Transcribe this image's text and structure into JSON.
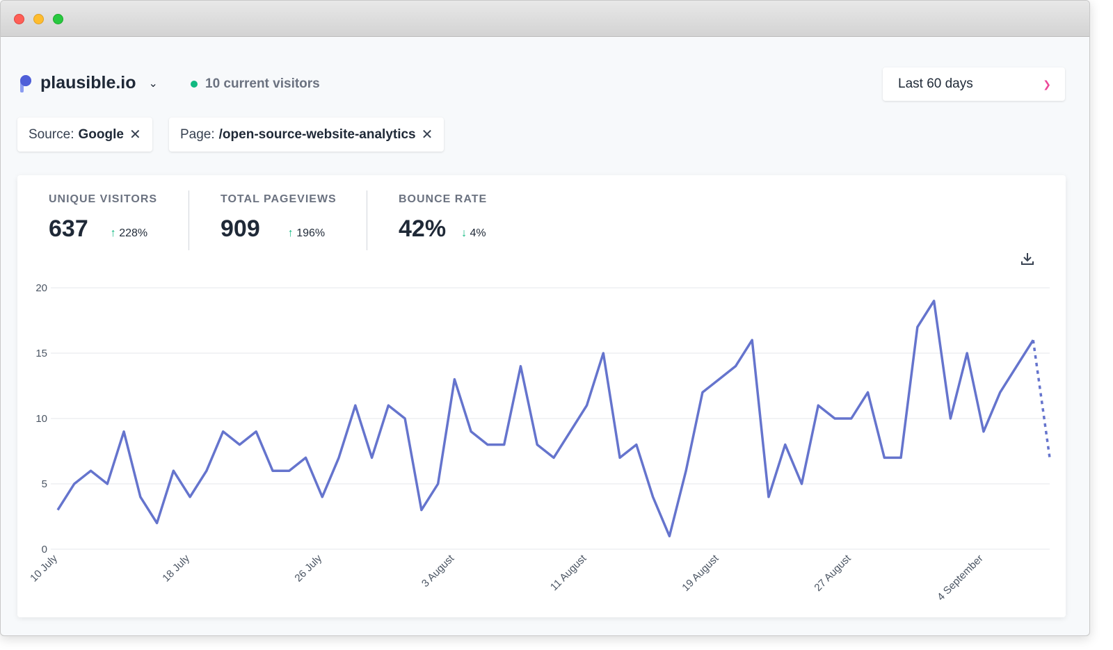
{
  "header": {
    "site": "plausible.io",
    "current_visitors": "10 current visitors",
    "date_range": "Last 60 days"
  },
  "filters": [
    {
      "key": "Source:",
      "value": "Google"
    },
    {
      "key": "Page:",
      "value": "/open-source-website-analytics"
    }
  ],
  "stats": [
    {
      "label": "UNIQUE VISITORS",
      "value": "637",
      "change": "228%",
      "direction": "up"
    },
    {
      "label": "TOTAL PAGEVIEWS",
      "value": "909",
      "change": "196%",
      "direction": "up"
    },
    {
      "label": "BOUNCE RATE",
      "value": "42%",
      "change": "4%",
      "direction": "down"
    }
  ],
  "colors": {
    "line": "#6574cd",
    "accent": "#ec4899",
    "live": "#10b981"
  },
  "chart_data": {
    "type": "area",
    "ylim": [
      0,
      20
    ],
    "yticks": [
      0,
      5,
      10,
      15,
      20
    ],
    "grid": true,
    "xtick_labels": [
      "10 July",
      "18 July",
      "26 July",
      "3 August",
      "11 August",
      "19 August",
      "27 August",
      "4 September"
    ],
    "xtick_every_days": 8,
    "start_date": "10 July",
    "end_date": "8 September",
    "last_point_dashed": true,
    "values": [
      3,
      5,
      6,
      5,
      9,
      4,
      2,
      6,
      4,
      6,
      9,
      8,
      9,
      6,
      6,
      7,
      4,
      7,
      11,
      7,
      11,
      10,
      3,
      5,
      13,
      9,
      8,
      8,
      14,
      8,
      7,
      9,
      11,
      15,
      7,
      8,
      4,
      1,
      6,
      12,
      13,
      14,
      16,
      4,
      8,
      5,
      11,
      10,
      10,
      12,
      7,
      7,
      17,
      19,
      10,
      15,
      9,
      12,
      14,
      16,
      7
    ]
  }
}
